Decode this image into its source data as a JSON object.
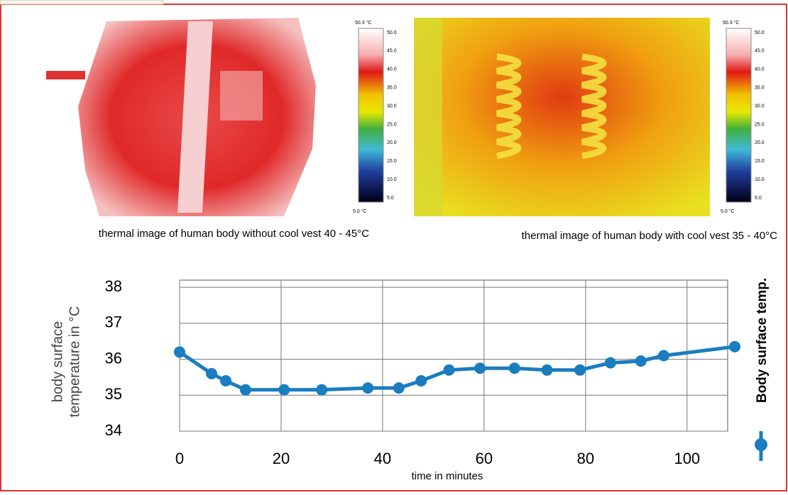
{
  "thermal_images": [
    {
      "caption": "thermal image of  human body without cool vest 40 - 45°C",
      "scale_max": "50.3 °C",
      "scale_min": "5.0 °C",
      "scale_ticks": [
        "50.0",
        "45.0",
        "40.0",
        "35.0",
        "30.0",
        "25.0",
        "20.0",
        "15.0",
        "10.0",
        "5.0"
      ]
    },
    {
      "caption": "thermal image of  human body with cool vest 35 - 40°C",
      "scale_max": "50.3 °C",
      "scale_min": "5.0 °C",
      "scale_ticks": [
        "50.0",
        "45.0",
        "40.0",
        "35.0",
        "30.0",
        "25.0",
        "20.0",
        "15.0",
        "10.0",
        "5.0"
      ]
    }
  ],
  "chart_data": {
    "type": "line",
    "x_label": "time in minutes",
    "y_label": [
      "body surface",
      "temperature in °C"
    ],
    "x": [
      0,
      6.3,
      9.1,
      13,
      20.6,
      28,
      37.1,
      43.2,
      47.6,
      53.1,
      59.2,
      66,
      72.4,
      78.9,
      84.9,
      90.9,
      95.4,
      109.4
    ],
    "series": [
      {
        "name": "Body surface temp.",
        "color": "#1a7dbf",
        "values": [
          36.2,
          35.6,
          35.4,
          35.15,
          35.15,
          35.15,
          35.2,
          35.2,
          35.4,
          35.7,
          35.75,
          35.75,
          35.7,
          35.7,
          35.9,
          35.95,
          36.1,
          36.35
        ]
      }
    ],
    "xlim": [
      0,
      108
    ],
    "xticks": [
      0,
      20,
      40,
      60,
      80,
      100
    ],
    "ylim": [
      34,
      38.2
    ],
    "yticks": [
      34,
      35,
      36,
      37,
      38
    ],
    "grid": true
  }
}
